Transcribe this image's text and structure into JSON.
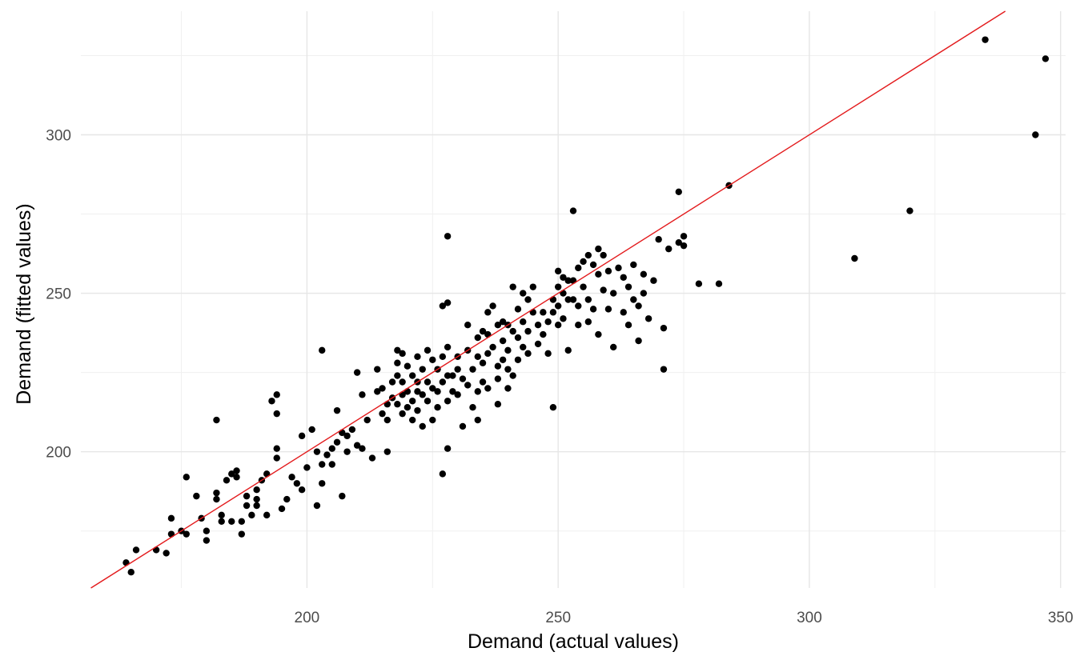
{
  "chart_data": {
    "type": "scatter",
    "title": "",
    "xlabel": "Demand (actual values)",
    "ylabel": "Demand (fitted values)",
    "xlim": [
      155,
      351
    ],
    "ylim": [
      157,
      339
    ],
    "x_ticks": [
      200,
      250,
      300,
      350
    ],
    "x_tick_labels": [
      "200",
      "250",
      "300",
      "350"
    ],
    "y_ticks": [
      200,
      250,
      300
    ],
    "y_tick_labels": [
      "200",
      "250",
      "300"
    ],
    "x_minor_ticks": [
      175,
      225,
      275,
      325
    ],
    "y_minor_ticks": [
      175,
      225,
      275,
      325
    ],
    "grid": true,
    "legend": "none",
    "point_color": "#000000",
    "reference_line": {
      "slope": 1,
      "intercept": 0,
      "color": "#e31a1c"
    },
    "points": [
      [
        164,
        165
      ],
      [
        165,
        162
      ],
      [
        166,
        169
      ],
      [
        170,
        169
      ],
      [
        172,
        168
      ],
      [
        173,
        179
      ],
      [
        173,
        174
      ],
      [
        175,
        175
      ],
      [
        176,
        192
      ],
      [
        176,
        174
      ],
      [
        178,
        186
      ],
      [
        179,
        179
      ],
      [
        180,
        175
      ],
      [
        180,
        172
      ],
      [
        182,
        210
      ],
      [
        182,
        187
      ],
      [
        182,
        185
      ],
      [
        183,
        180
      ],
      [
        183,
        178
      ],
      [
        184,
        191
      ],
      [
        185,
        193
      ],
      [
        185,
        178
      ],
      [
        186,
        192
      ],
      [
        186,
        194
      ],
      [
        187,
        178
      ],
      [
        187,
        174
      ],
      [
        188,
        186
      ],
      [
        188,
        183
      ],
      [
        189,
        180
      ],
      [
        190,
        188
      ],
      [
        190,
        185
      ],
      [
        190,
        183
      ],
      [
        191,
        191
      ],
      [
        192,
        193
      ],
      [
        192,
        180
      ],
      [
        193,
        216
      ],
      [
        194,
        218
      ],
      [
        194,
        212
      ],
      [
        194,
        201
      ],
      [
        194,
        198
      ],
      [
        195,
        182
      ],
      [
        196,
        185
      ],
      [
        197,
        192
      ],
      [
        198,
        190
      ],
      [
        199,
        205
      ],
      [
        199,
        188
      ],
      [
        200,
        195
      ],
      [
        201,
        207
      ],
      [
        202,
        200
      ],
      [
        202,
        183
      ],
      [
        203,
        232
      ],
      [
        203,
        196
      ],
      [
        203,
        190
      ],
      [
        204,
        199
      ],
      [
        205,
        201
      ],
      [
        205,
        196
      ],
      [
        206,
        213
      ],
      [
        206,
        203
      ],
      [
        207,
        206
      ],
      [
        207,
        186
      ],
      [
        208,
        200
      ],
      [
        208,
        205
      ],
      [
        209,
        207
      ],
      [
        210,
        225
      ],
      [
        210,
        202
      ],
      [
        211,
        218
      ],
      [
        211,
        201
      ],
      [
        212,
        210
      ],
      [
        213,
        198
      ],
      [
        214,
        226
      ],
      [
        214,
        219
      ],
      [
        215,
        220
      ],
      [
        215,
        212
      ],
      [
        216,
        210
      ],
      [
        216,
        200
      ],
      [
        216,
        215
      ],
      [
        217,
        222
      ],
      [
        217,
        217
      ],
      [
        218,
        232
      ],
      [
        218,
        224
      ],
      [
        218,
        228
      ],
      [
        218,
        215
      ],
      [
        219,
        231
      ],
      [
        219,
        222
      ],
      [
        219,
        212
      ],
      [
        219,
        218
      ],
      [
        220,
        227
      ],
      [
        220,
        219
      ],
      [
        220,
        214
      ],
      [
        221,
        224
      ],
      [
        221,
        216
      ],
      [
        221,
        210
      ],
      [
        222,
        230
      ],
      [
        222,
        222
      ],
      [
        222,
        219
      ],
      [
        222,
        213
      ],
      [
        223,
        226
      ],
      [
        223,
        218
      ],
      [
        223,
        208
      ],
      [
        224,
        232
      ],
      [
        224,
        222
      ],
      [
        224,
        216
      ],
      [
        225,
        229
      ],
      [
        225,
        220
      ],
      [
        225,
        210
      ],
      [
        226,
        226
      ],
      [
        226,
        219
      ],
      [
        226,
        214
      ],
      [
        227,
        246
      ],
      [
        227,
        230
      ],
      [
        227,
        222
      ],
      [
        227,
        193
      ],
      [
        228,
        268
      ],
      [
        228,
        247
      ],
      [
        228,
        233
      ],
      [
        228,
        224
      ],
      [
        228,
        216
      ],
      [
        228,
        201
      ],
      [
        229,
        224
      ],
      [
        229,
        219
      ],
      [
        230,
        230
      ],
      [
        230,
        226
      ],
      [
        230,
        218
      ],
      [
        231,
        223
      ],
      [
        231,
        208
      ],
      [
        232,
        240
      ],
      [
        232,
        232
      ],
      [
        232,
        221
      ],
      [
        233,
        226
      ],
      [
        233,
        214
      ],
      [
        234,
        236
      ],
      [
        234,
        230
      ],
      [
        234,
        219
      ],
      [
        234,
        210
      ],
      [
        235,
        238
      ],
      [
        235,
        228
      ],
      [
        235,
        222
      ],
      [
        236,
        244
      ],
      [
        236,
        237
      ],
      [
        236,
        231
      ],
      [
        236,
        220
      ],
      [
        237,
        246
      ],
      [
        237,
        233
      ],
      [
        238,
        240
      ],
      [
        238,
        227
      ],
      [
        238,
        223
      ],
      [
        238,
        215
      ],
      [
        239,
        241
      ],
      [
        239,
        235
      ],
      [
        239,
        229
      ],
      [
        240,
        240
      ],
      [
        240,
        232
      ],
      [
        240,
        226
      ],
      [
        240,
        220
      ],
      [
        241,
        252
      ],
      [
        241,
        238
      ],
      [
        241,
        224
      ],
      [
        242,
        245
      ],
      [
        242,
        236
      ],
      [
        242,
        229
      ],
      [
        243,
        250
      ],
      [
        243,
        241
      ],
      [
        243,
        233
      ],
      [
        244,
        248
      ],
      [
        244,
        238
      ],
      [
        244,
        231
      ],
      [
        245,
        252
      ],
      [
        245,
        244
      ],
      [
        246,
        240
      ],
      [
        246,
        234
      ],
      [
        247,
        244
      ],
      [
        247,
        237
      ],
      [
        248,
        231
      ],
      [
        248,
        241
      ],
      [
        249,
        214
      ],
      [
        249,
        248
      ],
      [
        249,
        244
      ],
      [
        250,
        257
      ],
      [
        250,
        252
      ],
      [
        250,
        246
      ],
      [
        250,
        240
      ],
      [
        251,
        255
      ],
      [
        251,
        250
      ],
      [
        251,
        242
      ],
      [
        252,
        254
      ],
      [
        252,
        248
      ],
      [
        252,
        232
      ],
      [
        253,
        276
      ],
      [
        253,
        254
      ],
      [
        253,
        248
      ],
      [
        254,
        258
      ],
      [
        254,
        246
      ],
      [
        254,
        240
      ],
      [
        255,
        260
      ],
      [
        255,
        252
      ],
      [
        256,
        262
      ],
      [
        256,
        248
      ],
      [
        256,
        241
      ],
      [
        257,
        259
      ],
      [
        257,
        245
      ],
      [
        258,
        264
      ],
      [
        258,
        256
      ],
      [
        258,
        237
      ],
      [
        259,
        262
      ],
      [
        259,
        251
      ],
      [
        260,
        257
      ],
      [
        260,
        245
      ],
      [
        261,
        250
      ],
      [
        261,
        233
      ],
      [
        262,
        258
      ],
      [
        263,
        255
      ],
      [
        263,
        244
      ],
      [
        264,
        252
      ],
      [
        264,
        240
      ],
      [
        265,
        259
      ],
      [
        265,
        248
      ],
      [
        266,
        235
      ],
      [
        266,
        246
      ],
      [
        267,
        256
      ],
      [
        267,
        250
      ],
      [
        268,
        242
      ],
      [
        269,
        254
      ],
      [
        270,
        267
      ],
      [
        271,
        239
      ],
      [
        271,
        226
      ],
      [
        272,
        264
      ],
      [
        274,
        282
      ],
      [
        274,
        266
      ],
      [
        275,
        268
      ],
      [
        275,
        265
      ],
      [
        278,
        253
      ],
      [
        282,
        253
      ],
      [
        284,
        284
      ],
      [
        309,
        261
      ],
      [
        320,
        276
      ],
      [
        335,
        330
      ],
      [
        345,
        300
      ],
      [
        347,
        324
      ]
    ]
  }
}
